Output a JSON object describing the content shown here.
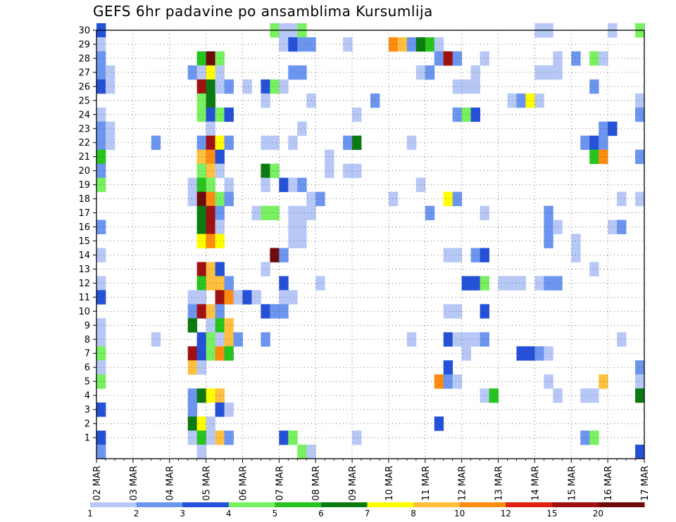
{
  "title": "GEFS 6hr padavine po ansamblima Kursumlija",
  "chart_data": {
    "type": "heatmap",
    "title": "GEFS 6hr padavine po ansamblima Kursumlija",
    "xlabel": "",
    "ylabel": "",
    "x_tick_labels": [
      "02 MAR",
      "03 MAR",
      "04 MAR",
      "05 MAR",
      "06 MAR",
      "07 MAR",
      "08 MAR",
      "09 MAR",
      "10 MAR",
      "11 MAR",
      "12 MAR",
      "13 MAR",
      "14 MAR",
      "15 MAR",
      "16 MAR",
      "17 MAR"
    ],
    "y_tick_labels": [
      "1",
      "2",
      "3",
      "4",
      "5",
      "6",
      "7",
      "8",
      "9",
      "10",
      "11",
      "12",
      "13",
      "14",
      "15",
      "16",
      "17",
      "18",
      "19",
      "20",
      "21",
      "22",
      "23",
      "24",
      "25",
      "26",
      "27",
      "28",
      "29",
      "30"
    ],
    "steps_per_day": 4,
    "grid": true,
    "colorbar": {
      "labels": [
        "1",
        "2",
        "3",
        "4",
        "5",
        "6",
        "7",
        "8",
        "10",
        "12",
        "15",
        "20"
      ],
      "colors": [
        "#b7c8f6",
        "#6b95ef",
        "#2550d8",
        "#79f060",
        "#26c51e",
        "#0b7a10",
        "#ffff00",
        "#ffc040",
        "#ff8c10",
        "#e02010",
        "#a01010",
        "#6e0a0a"
      ]
    },
    "cells": [
      [
        0,
        30,
        3
      ],
      [
        19,
        30,
        4
      ],
      [
        20,
        30,
        1
      ],
      [
        21,
        30,
        1
      ],
      [
        22,
        30,
        4
      ],
      [
        48,
        30,
        1
      ],
      [
        49,
        30,
        1
      ],
      [
        56,
        30,
        1
      ],
      [
        59,
        30,
        4
      ],
      [
        60,
        30,
        3
      ],
      [
        0,
        29,
        1
      ],
      [
        20,
        29,
        1
      ],
      [
        21,
        29,
        3
      ],
      [
        22,
        29,
        2
      ],
      [
        23,
        29,
        2
      ],
      [
        27,
        29,
        1
      ],
      [
        32,
        29,
        9
      ],
      [
        33,
        29,
        8
      ],
      [
        34,
        29,
        2
      ],
      [
        35,
        29,
        6
      ],
      [
        36,
        29,
        5
      ],
      [
        37,
        29,
        1
      ],
      [
        0,
        28,
        2
      ],
      [
        11,
        28,
        5
      ],
      [
        12,
        28,
        12
      ],
      [
        13,
        28,
        4
      ],
      [
        37,
        28,
        2
      ],
      [
        38,
        28,
        11
      ],
      [
        39,
        28,
        2
      ],
      [
        42,
        28,
        1
      ],
      [
        50,
        28,
        1
      ],
      [
        52,
        28,
        2
      ],
      [
        54,
        28,
        4
      ],
      [
        55,
        28,
        1
      ],
      [
        0,
        27,
        2
      ],
      [
        1,
        27,
        1
      ],
      [
        10,
        27,
        2
      ],
      [
        11,
        27,
        1
      ],
      [
        12,
        27,
        7
      ],
      [
        13,
        27,
        1
      ],
      [
        21,
        27,
        2
      ],
      [
        22,
        27,
        2
      ],
      [
        35,
        27,
        1
      ],
      [
        36,
        27,
        2
      ],
      [
        41,
        27,
        1
      ],
      [
        48,
        27,
        1
      ],
      [
        49,
        27,
        1
      ],
      [
        50,
        27,
        1
      ],
      [
        0,
        26,
        3
      ],
      [
        1,
        26,
        1
      ],
      [
        11,
        26,
        11
      ],
      [
        12,
        26,
        6
      ],
      [
        13,
        26,
        1
      ],
      [
        14,
        26,
        2
      ],
      [
        16,
        26,
        1
      ],
      [
        18,
        26,
        3
      ],
      [
        19,
        26,
        4
      ],
      [
        20,
        26,
        1
      ],
      [
        39,
        26,
        1
      ],
      [
        40,
        26,
        1
      ],
      [
        41,
        26,
        1
      ],
      [
        54,
        26,
        2
      ],
      [
        11,
        25,
        4
      ],
      [
        12,
        25,
        6
      ],
      [
        18,
        25,
        1
      ],
      [
        23,
        25,
        1
      ],
      [
        30,
        25,
        2
      ],
      [
        45,
        25,
        1
      ],
      [
        46,
        25,
        2
      ],
      [
        47,
        25,
        7
      ],
      [
        48,
        25,
        1
      ],
      [
        59,
        25,
        1
      ],
      [
        60,
        25,
        4
      ],
      [
        0,
        24,
        1
      ],
      [
        11,
        24,
        4
      ],
      [
        12,
        24,
        3
      ],
      [
        13,
        24,
        4
      ],
      [
        14,
        24,
        3
      ],
      [
        28,
        24,
        1
      ],
      [
        39,
        24,
        2
      ],
      [
        40,
        24,
        4
      ],
      [
        41,
        24,
        3
      ],
      [
        59,
        24,
        2
      ],
      [
        60,
        24,
        6
      ],
      [
        0,
        23,
        2
      ],
      [
        1,
        23,
        1
      ],
      [
        12,
        23,
        1
      ],
      [
        22,
        23,
        1
      ],
      [
        55,
        23,
        2
      ],
      [
        56,
        23,
        3
      ],
      [
        0,
        22,
        2
      ],
      [
        1,
        22,
        1
      ],
      [
        6,
        22,
        2
      ],
      [
        11,
        22,
        2
      ],
      [
        12,
        22,
        11
      ],
      [
        13,
        22,
        7
      ],
      [
        14,
        22,
        2
      ],
      [
        18,
        22,
        1
      ],
      [
        19,
        22,
        1
      ],
      [
        21,
        22,
        1
      ],
      [
        27,
        22,
        2
      ],
      [
        28,
        22,
        6
      ],
      [
        34,
        22,
        1
      ],
      [
        53,
        22,
        2
      ],
      [
        54,
        22,
        3
      ],
      [
        55,
        22,
        2
      ],
      [
        0,
        21,
        5
      ],
      [
        11,
        21,
        8
      ],
      [
        12,
        21,
        9
      ],
      [
        13,
        21,
        3
      ],
      [
        25,
        21,
        1
      ],
      [
        54,
        21,
        5
      ],
      [
        55,
        21,
        9
      ],
      [
        59,
        21,
        2
      ],
      [
        60,
        21,
        8
      ],
      [
        0,
        20,
        2
      ],
      [
        11,
        20,
        4
      ],
      [
        12,
        20,
        8
      ],
      [
        13,
        20,
        1
      ],
      [
        18,
        20,
        6
      ],
      [
        19,
        20,
        4
      ],
      [
        25,
        20,
        1
      ],
      [
        27,
        20,
        1
      ],
      [
        28,
        20,
        1
      ],
      [
        0,
        19,
        4
      ],
      [
        10,
        19,
        1
      ],
      [
        11,
        19,
        5
      ],
      [
        12,
        19,
        4
      ],
      [
        14,
        19,
        1
      ],
      [
        18,
        19,
        1
      ],
      [
        20,
        19,
        3
      ],
      [
        21,
        19,
        1
      ],
      [
        22,
        19,
        2
      ],
      [
        35,
        19,
        1
      ],
      [
        10,
        18,
        1
      ],
      [
        11,
        18,
        12
      ],
      [
        12,
        18,
        9
      ],
      [
        13,
        18,
        4
      ],
      [
        14,
        18,
        2
      ],
      [
        23,
        18,
        1
      ],
      [
        24,
        18,
        2
      ],
      [
        32,
        18,
        1
      ],
      [
        38,
        18,
        7
      ],
      [
        39,
        18,
        2
      ],
      [
        57,
        18,
        1
      ],
      [
        59,
        18,
        1
      ],
      [
        11,
        17,
        6
      ],
      [
        12,
        17,
        11
      ],
      [
        13,
        17,
        2
      ],
      [
        17,
        17,
        1
      ],
      [
        18,
        17,
        4
      ],
      [
        19,
        17,
        4
      ],
      [
        21,
        17,
        1
      ],
      [
        22,
        17,
        1
      ],
      [
        23,
        17,
        1
      ],
      [
        36,
        17,
        2
      ],
      [
        42,
        17,
        1
      ],
      [
        49,
        17,
        2
      ],
      [
        60,
        17,
        4
      ],
      [
        0,
        16,
        2
      ],
      [
        11,
        16,
        6
      ],
      [
        12,
        16,
        11
      ],
      [
        13,
        16,
        1
      ],
      [
        21,
        16,
        1
      ],
      [
        22,
        16,
        1
      ],
      [
        49,
        16,
        2
      ],
      [
        50,
        16,
        1
      ],
      [
        56,
        16,
        1
      ],
      [
        57,
        16,
        2
      ],
      [
        11,
        15,
        7
      ],
      [
        12,
        15,
        9
      ],
      [
        13,
        15,
        7
      ],
      [
        21,
        15,
        1
      ],
      [
        22,
        15,
        1
      ],
      [
        49,
        15,
        2
      ],
      [
        52,
        15,
        1
      ],
      [
        0,
        14,
        1
      ],
      [
        19,
        14,
        12
      ],
      [
        20,
        14,
        2
      ],
      [
        38,
        14,
        1
      ],
      [
        39,
        14,
        1
      ],
      [
        41,
        14,
        2
      ],
      [
        42,
        14,
        3
      ],
      [
        52,
        14,
        1
      ],
      [
        11,
        13,
        11
      ],
      [
        12,
        13,
        8
      ],
      [
        13,
        13,
        3
      ],
      [
        18,
        13,
        1
      ],
      [
        54,
        13,
        1
      ],
      [
        0,
        12,
        1
      ],
      [
        11,
        12,
        5
      ],
      [
        12,
        12,
        8
      ],
      [
        13,
        12,
        8
      ],
      [
        14,
        12,
        2
      ],
      [
        20,
        12,
        3
      ],
      [
        24,
        12,
        1
      ],
      [
        40,
        12,
        3
      ],
      [
        41,
        12,
        3
      ],
      [
        42,
        12,
        4
      ],
      [
        44,
        12,
        1
      ],
      [
        45,
        12,
        1
      ],
      [
        46,
        12,
        1
      ],
      [
        48,
        12,
        1
      ],
      [
        49,
        12,
        2
      ],
      [
        50,
        12,
        2
      ],
      [
        0,
        11,
        3
      ],
      [
        10,
        11,
        1
      ],
      [
        11,
        11,
        1
      ],
      [
        13,
        11,
        11
      ],
      [
        14,
        11,
        9
      ],
      [
        15,
        11,
        1
      ],
      [
        16,
        11,
        3
      ],
      [
        17,
        11,
        1
      ],
      [
        20,
        11,
        1
      ],
      [
        21,
        11,
        1
      ],
      [
        60,
        11,
        2
      ],
      [
        10,
        10,
        2
      ],
      [
        11,
        10,
        11
      ],
      [
        12,
        10,
        8
      ],
      [
        13,
        10,
        2
      ],
      [
        18,
        10,
        3
      ],
      [
        19,
        10,
        2
      ],
      [
        20,
        10,
        2
      ],
      [
        38,
        10,
        1
      ],
      [
        39,
        10,
        1
      ],
      [
        42,
        10,
        3
      ],
      [
        0,
        9,
        1
      ],
      [
        10,
        9,
        6
      ],
      [
        12,
        9,
        1
      ],
      [
        13,
        9,
        5
      ],
      [
        14,
        9,
        8
      ],
      [
        0,
        8,
        1
      ],
      [
        6,
        8,
        1
      ],
      [
        11,
        8,
        3
      ],
      [
        12,
        8,
        4
      ],
      [
        13,
        8,
        1
      ],
      [
        14,
        8,
        8
      ],
      [
        15,
        8,
        2
      ],
      [
        18,
        8,
        2
      ],
      [
        34,
        8,
        1
      ],
      [
        38,
        8,
        3
      ],
      [
        39,
        8,
        1
      ],
      [
        40,
        8,
        1
      ],
      [
        41,
        8,
        1
      ],
      [
        42,
        8,
        2
      ],
      [
        57,
        8,
        1
      ],
      [
        0,
        7,
        4
      ],
      [
        10,
        7,
        11
      ],
      [
        11,
        7,
        3
      ],
      [
        12,
        7,
        4
      ],
      [
        13,
        7,
        9
      ],
      [
        14,
        7,
        5
      ],
      [
        40,
        7,
        1
      ],
      [
        46,
        7,
        3
      ],
      [
        47,
        7,
        3
      ],
      [
        48,
        7,
        2
      ],
      [
        49,
        7,
        1
      ],
      [
        0,
        6,
        1
      ],
      [
        10,
        6,
        8
      ],
      [
        11,
        6,
        1
      ],
      [
        38,
        6,
        3
      ],
      [
        59,
        6,
        2
      ],
      [
        0,
        5,
        4
      ],
      [
        37,
        5,
        9
      ],
      [
        38,
        5,
        2
      ],
      [
        39,
        5,
        1
      ],
      [
        49,
        5,
        1
      ],
      [
        55,
        5,
        8
      ],
      [
        59,
        5,
        1
      ],
      [
        10,
        4,
        2
      ],
      [
        11,
        4,
        6
      ],
      [
        12,
        4,
        7
      ],
      [
        13,
        4,
        8
      ],
      [
        42,
        4,
        1
      ],
      [
        43,
        4,
        5
      ],
      [
        50,
        4,
        1
      ],
      [
        53,
        4,
        1
      ],
      [
        54,
        4,
        1
      ],
      [
        59,
        4,
        6
      ],
      [
        0,
        3,
        3
      ],
      [
        10,
        3,
        2
      ],
      [
        13,
        3,
        3
      ],
      [
        14,
        3,
        1
      ],
      [
        10,
        2,
        6
      ],
      [
        11,
        2,
        7
      ],
      [
        12,
        2,
        1
      ],
      [
        37,
        2,
        3
      ],
      [
        0,
        1,
        3
      ],
      [
        10,
        1,
        1
      ],
      [
        11,
        1,
        5
      ],
      [
        12,
        1,
        1
      ],
      [
        13,
        1,
        8
      ],
      [
        14,
        1,
        2
      ],
      [
        20,
        1,
        3
      ],
      [
        21,
        1,
        4
      ],
      [
        28,
        1,
        1
      ],
      [
        53,
        1,
        2
      ],
      [
        54,
        1,
        4
      ],
      [
        0,
        0,
        2
      ],
      [
        11,
        0,
        1
      ],
      [
        22,
        0,
        4
      ],
      [
        23,
        0,
        1
      ],
      [
        59,
        0,
        3
      ]
    ]
  }
}
